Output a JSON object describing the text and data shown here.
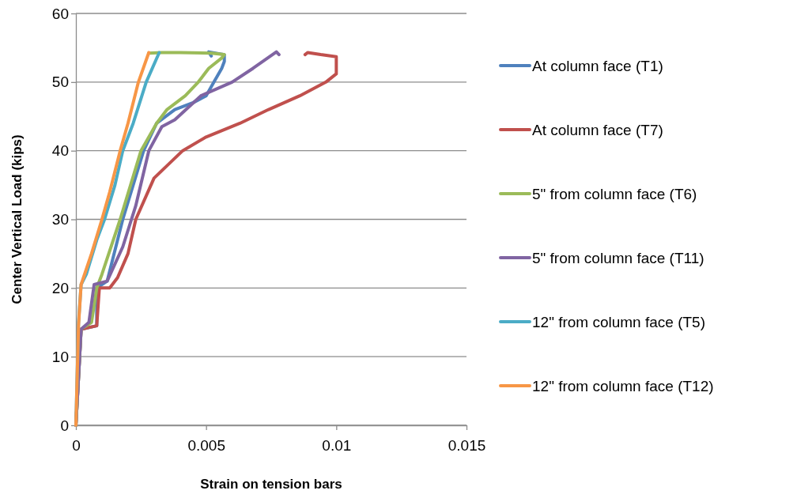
{
  "chart_data": {
    "type": "line",
    "xlabel": "Strain on tension bars",
    "ylabel": "Center Vertical Load (kips)",
    "xlim": [
      0,
      0.015
    ],
    "xticks": [
      0,
      0.005,
      0.01,
      0.015
    ],
    "ylim": [
      0,
      60
    ],
    "yticks": [
      0,
      10,
      20,
      30,
      40,
      50,
      60
    ],
    "grid": "y",
    "legend": "right",
    "marker": "none",
    "line_style": "solid",
    "series": [
      {
        "name": "At column face (T1)",
        "color": "#4f81bd",
        "x": [
          0,
          0.0002,
          0.0008,
          0.0008,
          0.0012,
          0.0018,
          0.0026,
          0.0031,
          0.0038,
          0.0045,
          0.005,
          0.0053,
          0.0056,
          0.0057,
          0.0057,
          0.0054,
          0.0051,
          0.0052
        ],
        "values": [
          0,
          14,
          14.5,
          20,
          21,
          30,
          40,
          44,
          46,
          47,
          48,
          50,
          52,
          53,
          54,
          54.2,
          54.4,
          53.8
        ]
      },
      {
        "name": "At column face (T7)",
        "color": "#c0504d",
        "x": [
          0,
          0.0002,
          0.0008,
          0.0009,
          0.0013,
          0.0016,
          0.002,
          0.0023,
          0.003,
          0.0041,
          0.005,
          0.0063,
          0.0074,
          0.0086,
          0.0096,
          0.01,
          0.01,
          0.0094,
          0.0089,
          0.0088
        ],
        "values": [
          0,
          14,
          14.5,
          20,
          20,
          21.5,
          25,
          30,
          36,
          40,
          42,
          44,
          46,
          48,
          50,
          51.2,
          53.7,
          54,
          54.3,
          54
        ]
      },
      {
        "name": "5\" from column face (T6)",
        "color": "#9bbb59",
        "x": [
          0,
          0.0002,
          0.0006,
          0.0008,
          0.001,
          0.0017,
          0.0025,
          0.0031,
          0.0035,
          0.0042,
          0.0047,
          0.0051,
          0.0056,
          0.0057,
          0.0052,
          0.004,
          0.0033,
          0.0028
        ],
        "values": [
          0,
          14,
          15,
          20,
          22,
          30,
          40,
          44,
          46,
          48,
          50,
          52,
          53.5,
          54,
          54.2,
          54.3,
          54.3,
          54.2
        ]
      },
      {
        "name": "5\" from column face (T11)",
        "color": "#8064a2",
        "x": [
          0,
          0.0002,
          0.0005,
          0.0007,
          0.0012,
          0.0018,
          0.0023,
          0.0028,
          0.0033,
          0.0038,
          0.0048,
          0.006,
          0.0068,
          0.0077,
          0.0078
        ],
        "values": [
          0,
          14,
          15,
          20.5,
          21,
          26,
          32,
          40,
          43.5,
          44.5,
          48,
          50,
          52,
          54.4,
          54
        ]
      },
      {
        "name": "12\" from column face (T5)",
        "color": "#4bacc6",
        "x": [
          0,
          0.0001,
          0.0002,
          0.0004,
          0.0008,
          0.0011,
          0.0015,
          0.0018,
          0.0022,
          0.0027,
          0.0032
        ],
        "values": [
          0,
          15,
          20.5,
          22,
          27,
          30,
          35,
          40,
          44,
          50,
          54.3
        ]
      },
      {
        "name": "12\" from column face (T12)",
        "color": "#f79646",
        "x": [
          0,
          0.0001,
          0.0002,
          0.0006,
          0.001,
          0.0013,
          0.0017,
          0.002,
          0.0024,
          0.0028
        ],
        "values": [
          0,
          14.5,
          20.5,
          25,
          30,
          34,
          40,
          44,
          50,
          54.3
        ]
      }
    ]
  }
}
